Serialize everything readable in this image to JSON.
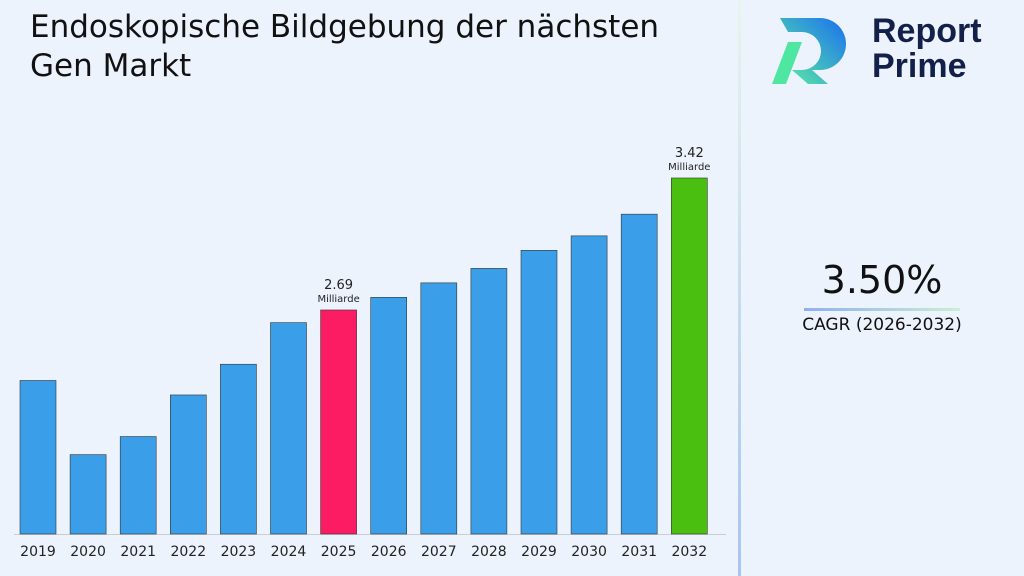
{
  "title": "Endoskopische Bildgebung der nächsten Gen Markt",
  "brand": {
    "line1": "Report",
    "line2": "Prime"
  },
  "cagr": {
    "value": "3.50%",
    "label": "CAGR (2026-2032)"
  },
  "chart_data": {
    "type": "bar",
    "title": "Endoskopische Bildgebung der nächsten Gen Markt",
    "categories": [
      "2019",
      "2020",
      "2021",
      "2022",
      "2023",
      "2024",
      "2025",
      "2026",
      "2027",
      "2028",
      "2029",
      "2030",
      "2031",
      "2032"
    ],
    "values": [
      2.3,
      1.89,
      1.99,
      2.22,
      2.39,
      2.62,
      2.69,
      2.76,
      2.84,
      2.92,
      3.02,
      3.1,
      3.22,
      3.42
    ],
    "unit": "Milliarde",
    "data_labels": {
      "2025": "2.69",
      "2032": "3.42"
    },
    "colors": {
      "default": "#3a9fe8",
      "highlight_2025": "#fc1c63",
      "highlight_2032": "#4bbf10"
    },
    "grid": false,
    "legend": "none"
  }
}
